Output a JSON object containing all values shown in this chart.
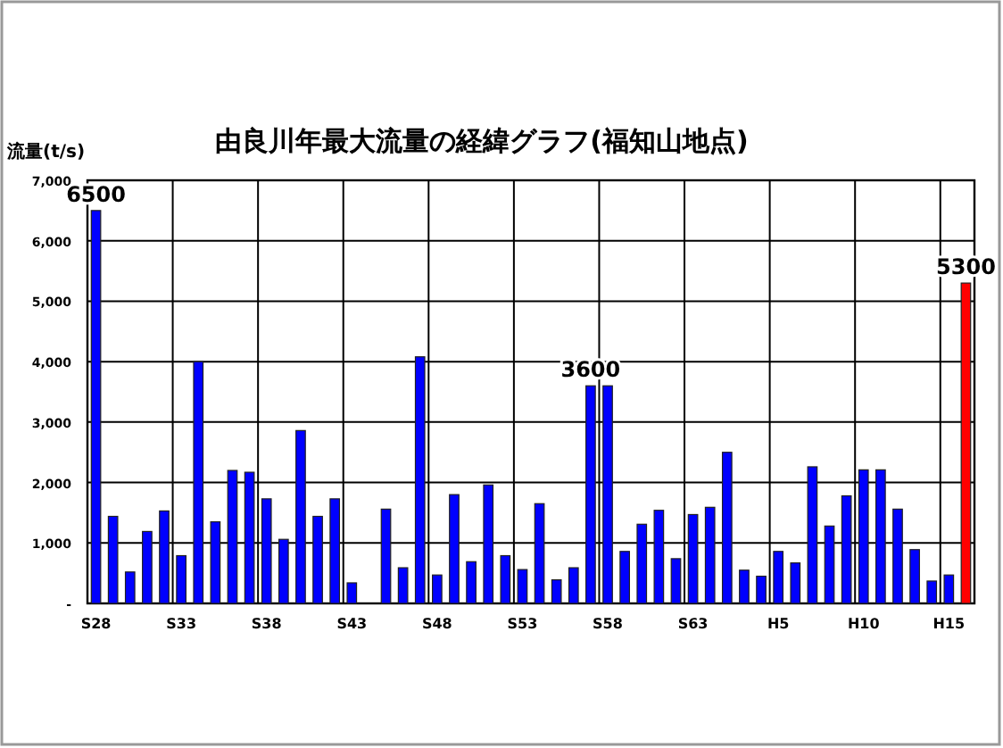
{
  "chart_data": {
    "type": "bar",
    "title": "由良川年最大流量の経緯グラフ(福知山地点)",
    "ylabel": "流量(t/s)",
    "categories": [
      "S28",
      null,
      null,
      null,
      null,
      "S33",
      null,
      null,
      null,
      null,
      "S38",
      null,
      null,
      null,
      null,
      "S43",
      null,
      null,
      null,
      null,
      "S48",
      null,
      null,
      null,
      null,
      "S53",
      null,
      null,
      null,
      null,
      "S58",
      null,
      null,
      null,
      null,
      "S63",
      null,
      null,
      null,
      null,
      "H5",
      null,
      null,
      null,
      null,
      "H10",
      null,
      null,
      null,
      null,
      "H15",
      null
    ],
    "values": [
      6500,
      1440,
      520,
      1190,
      1530,
      790,
      4000,
      1350,
      2200,
      2170,
      1730,
      1060,
      2860,
      1440,
      1730,
      340,
      null,
      1560,
      590,
      4080,
      470,
      1800,
      690,
      1960,
      790,
      560,
      1650,
      390,
      590,
      3600,
      3600,
      860,
      1310,
      1540,
      740,
      1470,
      1590,
      2500,
      550,
      450,
      860,
      670,
      2260,
      1280,
      1780,
      2210,
      2210,
      1560,
      890,
      370,
      470,
      5300
    ],
    "colors": [
      "#0000ff",
      "#0000ff",
      "#0000ff",
      "#0000ff",
      "#0000ff",
      "#0000ff",
      "#0000ff",
      "#0000ff",
      "#0000ff",
      "#0000ff",
      "#0000ff",
      "#0000ff",
      "#0000ff",
      "#0000ff",
      "#0000ff",
      "#0000ff",
      "#0000ff",
      "#0000ff",
      "#0000ff",
      "#0000ff",
      "#0000ff",
      "#0000ff",
      "#0000ff",
      "#0000ff",
      "#0000ff",
      "#0000ff",
      "#0000ff",
      "#0000ff",
      "#0000ff",
      "#0000ff",
      "#0000ff",
      "#0000ff",
      "#0000ff",
      "#0000ff",
      "#0000ff",
      "#0000ff",
      "#0000ff",
      "#0000ff",
      "#0000ff",
      "#0000ff",
      "#0000ff",
      "#0000ff",
      "#0000ff",
      "#0000ff",
      "#0000ff",
      "#0000ff",
      "#0000ff",
      "#0000ff",
      "#0000ff",
      "#0000ff",
      "#0000ff",
      "#ff0000"
    ],
    "value_labels": [
      "6500",
      null,
      null,
      null,
      null,
      null,
      null,
      null,
      null,
      null,
      null,
      null,
      null,
      null,
      null,
      null,
      null,
      null,
      null,
      null,
      null,
      null,
      null,
      null,
      null,
      null,
      null,
      null,
      null,
      "3600",
      null,
      null,
      null,
      null,
      null,
      null,
      null,
      null,
      null,
      null,
      null,
      null,
      null,
      null,
      null,
      null,
      null,
      null,
      null,
      null,
      null,
      "5300"
    ],
    "ylim": [
      0,
      7000
    ],
    "yticks": [
      {
        "value": 0,
        "label": "-"
      },
      {
        "value": 1000,
        "label": "1,000"
      },
      {
        "value": 2000,
        "label": "2,000"
      },
      {
        "value": 3000,
        "label": "3,000"
      },
      {
        "value": 4000,
        "label": "4,000"
      },
      {
        "value": 5000,
        "label": "5,000"
      },
      {
        "value": 6000,
        "label": "6,000"
      },
      {
        "value": 7000,
        "label": "7,000"
      }
    ],
    "grid": true
  }
}
